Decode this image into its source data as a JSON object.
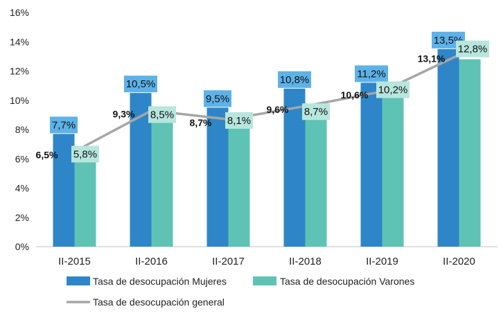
{
  "chart_data": {
    "type": "bar",
    "title": "",
    "xlabel": "",
    "ylabel": "",
    "categories": [
      "II-2015",
      "II-2016",
      "II-2017",
      "II-2018",
      "II-2019",
      "II-2020"
    ],
    "ylim": [
      0,
      16
    ],
    "yticks": [
      "0%",
      "2%",
      "4%",
      "6%",
      "8%",
      "10%",
      "12%",
      "14%",
      "16%"
    ],
    "grid": false,
    "legend_position": "bottom",
    "series": [
      {
        "name": "Tasa de desocupación  Mujeres",
        "kind": "bar",
        "color": "#2E86C8",
        "label_bg": "#5DB2E8",
        "values": [
          7.7,
          10.5,
          9.5,
          10.8,
          11.2,
          13.5
        ],
        "labels": [
          "7,7%",
          "10,5%",
          "9,5%",
          "10,8%",
          "11,2%",
          "13,5%"
        ]
      },
      {
        "name": "Tasa de desocupación Varones",
        "kind": "bar",
        "color": "#5EC3B5",
        "label_bg": "#B7E6DD",
        "values": [
          5.8,
          8.5,
          8.1,
          8.7,
          10.2,
          12.8
        ],
        "labels": [
          "5,8%",
          "8,5%",
          "8,1%",
          "8,7%",
          "10,2%",
          "12,8%"
        ]
      },
      {
        "name": "Tasa de desocupación general",
        "kind": "line",
        "color": "#A6A6A6",
        "values": [
          6.5,
          9.3,
          8.7,
          9.6,
          10.6,
          13.1
        ],
        "labels": [
          "6,5%",
          "9,3%",
          "8,7%",
          "9,6%",
          "10,6%",
          "13,1%"
        ]
      }
    ]
  }
}
